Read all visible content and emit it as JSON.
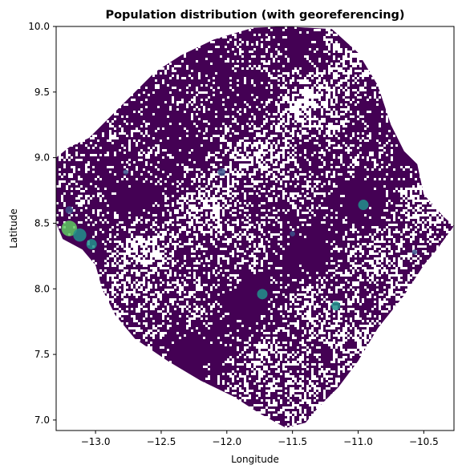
{
  "chart_data": {
    "type": "heatmap",
    "title": "Population distribution (with georeferencing)",
    "xlabel": "Longitude",
    "ylabel": "Latitude",
    "xlim": [
      -13.3,
      -10.27
    ],
    "ylim": [
      6.92,
      10.0
    ],
    "xticks": [
      {
        "value": -13.0,
        "label": "−13.0"
      },
      {
        "value": -12.5,
        "label": "−12.5"
      },
      {
        "value": -12.0,
        "label": "−12.0"
      },
      {
        "value": -11.5,
        "label": "−11.5"
      },
      {
        "value": -11.0,
        "label": "−11.0"
      },
      {
        "value": -10.5,
        "label": "−10.5"
      }
    ],
    "yticks": [
      {
        "value": 7.0,
        "label": "7.0"
      },
      {
        "value": 7.5,
        "label": "7.5"
      },
      {
        "value": 8.0,
        "label": "8.0"
      },
      {
        "value": 8.5,
        "label": "8.5"
      },
      {
        "value": 9.0,
        "label": "9.0"
      },
      {
        "value": 9.5,
        "label": "9.5"
      },
      {
        "value": 10.0,
        "label": "10.0"
      }
    ],
    "colormap": "viridis",
    "colors": {
      "background_density": "#440154",
      "low": "#3b528b",
      "mid": "#21918c",
      "high": "#5ec962"
    },
    "region_outline": [
      [
        -13.3,
        8.5
      ],
      [
        -13.25,
        8.38
      ],
      [
        -13.1,
        8.3
      ],
      [
        -13.0,
        8.18
      ],
      [
        -12.95,
        8.0
      ],
      [
        -12.85,
        7.8
      ],
      [
        -12.7,
        7.62
      ],
      [
        -12.45,
        7.45
      ],
      [
        -12.2,
        7.3
      ],
      [
        -11.95,
        7.18
      ],
      [
        -11.75,
        7.05
      ],
      [
        -11.55,
        6.94
      ],
      [
        -11.4,
        6.98
      ],
      [
        -11.3,
        7.1
      ],
      [
        -11.15,
        7.25
      ],
      [
        -11.0,
        7.45
      ],
      [
        -10.85,
        7.7
      ],
      [
        -10.65,
        7.95
      ],
      [
        -10.5,
        8.18
      ],
      [
        -10.4,
        8.3
      ],
      [
        -10.27,
        8.48
      ],
      [
        -10.35,
        8.55
      ],
      [
        -10.5,
        8.72
      ],
      [
        -10.55,
        8.95
      ],
      [
        -10.65,
        9.05
      ],
      [
        -10.75,
        9.25
      ],
      [
        -10.85,
        9.55
      ],
      [
        -11.0,
        9.8
      ],
      [
        -11.2,
        9.98
      ],
      [
        -11.55,
        10.0
      ],
      [
        -11.8,
        9.99
      ],
      [
        -12.1,
        9.9
      ],
      [
        -12.35,
        9.78
      ],
      [
        -12.55,
        9.65
      ],
      [
        -12.75,
        9.45
      ],
      [
        -12.9,
        9.3
      ],
      [
        -13.05,
        9.15
      ],
      [
        -13.2,
        9.08
      ],
      [
        -13.3,
        9.0
      ]
    ],
    "hotspots": [
      {
        "x": -13.2,
        "y": 8.46,
        "r": 0.06,
        "level": "high"
      },
      {
        "x": -13.12,
        "y": 8.41,
        "r": 0.05,
        "level": "mid"
      },
      {
        "x": -13.03,
        "y": 8.34,
        "r": 0.04,
        "level": "mid"
      },
      {
        "x": -13.2,
        "y": 8.6,
        "r": 0.03,
        "level": "low"
      },
      {
        "x": -11.73,
        "y": 7.96,
        "r": 0.04,
        "level": "mid"
      },
      {
        "x": -11.17,
        "y": 7.87,
        "r": 0.035,
        "level": "mid"
      },
      {
        "x": -10.96,
        "y": 8.64,
        "r": 0.04,
        "level": "mid"
      },
      {
        "x": -12.04,
        "y": 8.89,
        "r": 0.03,
        "level": "low"
      },
      {
        "x": -12.77,
        "y": 8.89,
        "r": 0.02,
        "level": "low"
      },
      {
        "x": -11.5,
        "y": 8.42,
        "r": 0.02,
        "level": "low"
      },
      {
        "x": -10.57,
        "y": 8.28,
        "r": 0.02,
        "level": "low"
      }
    ]
  }
}
